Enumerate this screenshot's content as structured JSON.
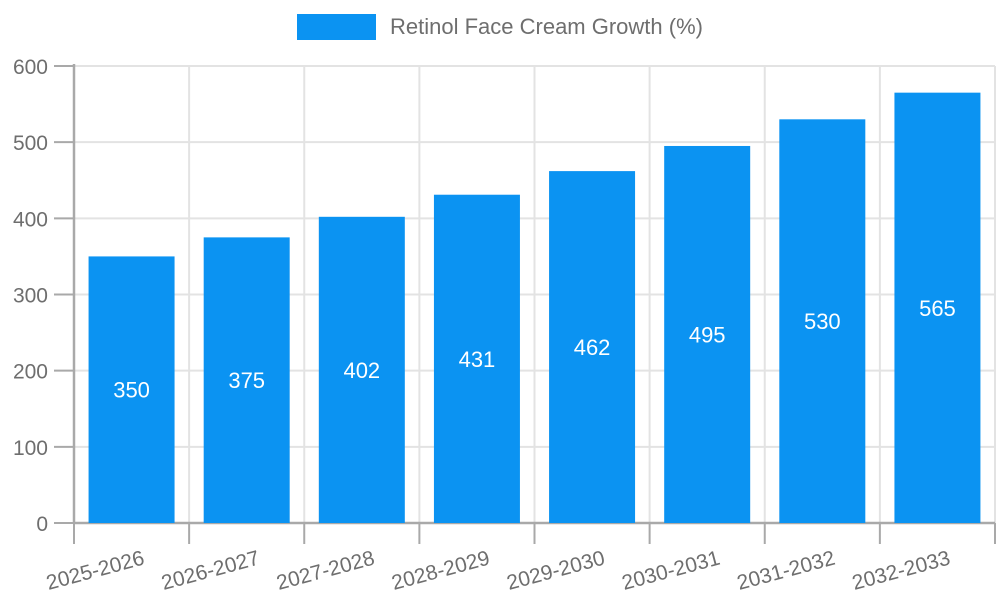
{
  "legend": {
    "label": "Retinol Face Cream Growth (%)"
  },
  "chart_data": {
    "type": "bar",
    "title": "",
    "categories": [
      "2025-2026",
      "2026-2027",
      "2027-2028",
      "2028-2029",
      "2029-2030",
      "2030-2031",
      "2031-2032",
      "2032-2033"
    ],
    "series": [
      {
        "name": "Retinol Face Cream Growth (%)",
        "values": [
          350,
          375,
          402,
          431,
          462,
          495,
          530,
          565
        ]
      }
    ],
    "value_labels": [
      "350",
      "375",
      "402",
      "431",
      "462",
      "495",
      "530",
      "565"
    ],
    "value_label_position": "center-inside",
    "xlabel": "",
    "ylabel": "",
    "ylim": [
      0,
      600
    ],
    "yticks": [
      0,
      100,
      200,
      300,
      400,
      500,
      600
    ],
    "ytick_labels": [
      "0",
      "100",
      "200",
      "300",
      "400",
      "500",
      "600"
    ],
    "x_label_rotation_deg": -15,
    "grid": true,
    "legend_position": "top-center",
    "colors": {
      "bar": "#0B93F2",
      "value_label": "#ffffff",
      "grid_line": "#e3e3e3",
      "axis_line": "#a9a9a9",
      "tick_text": "#6e6e6e",
      "legend_text": "#6e6e6e",
      "background": "#ffffff"
    }
  }
}
